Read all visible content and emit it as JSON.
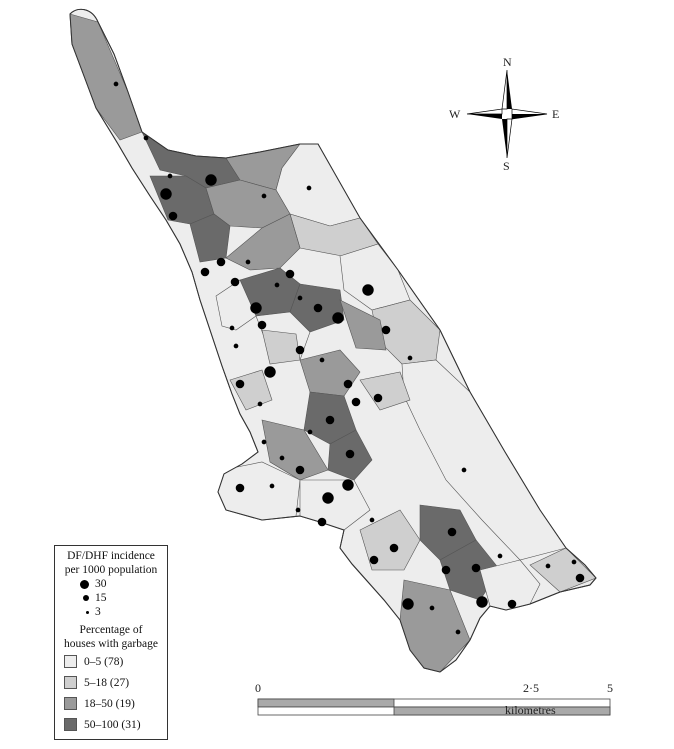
{
  "compass": {
    "n": "N",
    "s": "S",
    "e": "E",
    "w": "W"
  },
  "legend": {
    "incidence_title_line1": "DF/DHF incidence",
    "incidence_title_line2": "per 1000 population",
    "incidence_items": [
      {
        "label": "30",
        "value": 30
      },
      {
        "label": "15",
        "value": 15
      },
      {
        "label": "3",
        "value": 3
      }
    ],
    "garbage_title_line1": "Percentage of",
    "garbage_title_line2": "houses with garbage",
    "garbage_classes": [
      {
        "label": "0–5 (78)",
        "color": "#ededed"
      },
      {
        "label": "5–18 (27)",
        "color": "#cfcfcf"
      },
      {
        "label": "18–50 (19)",
        "color": "#9a9a9a"
      },
      {
        "label": "50–100 (31)",
        "color": "#6a6a6a"
      }
    ]
  },
  "scalebar": {
    "tick_0": "0",
    "tick_mid": "2·5",
    "tick_end": "5",
    "unit": "kilometres"
  }
}
